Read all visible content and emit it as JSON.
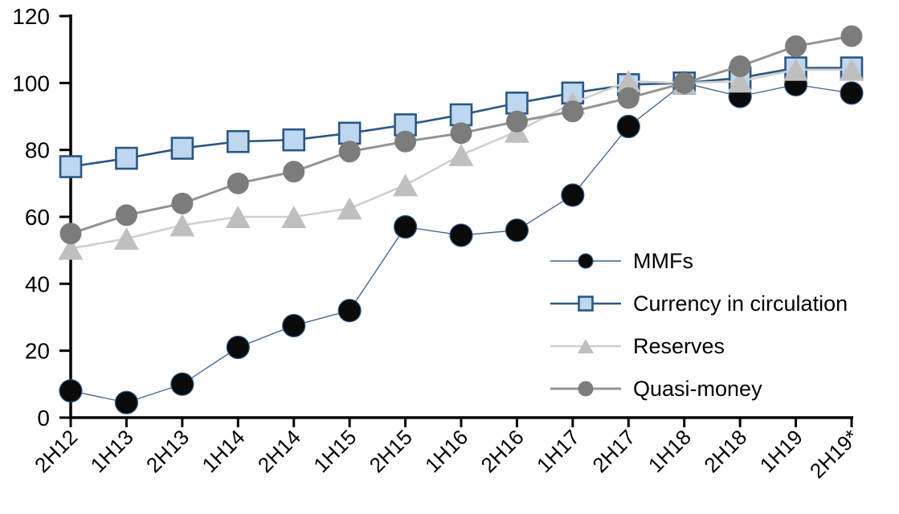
{
  "chart_data": {
    "type": "line",
    "title": "",
    "xlabel": "",
    "ylabel": "",
    "ylim": [
      0,
      120
    ],
    "y_ticks": [
      0,
      20,
      40,
      60,
      80,
      100,
      120
    ],
    "grid": false,
    "axis_color": "#000000",
    "legend_position": "inside-right",
    "categories": [
      "2H12",
      "1H13",
      "2H13",
      "1H14",
      "2H14",
      "1H15",
      "2H15",
      "1H16",
      "2H16",
      "1H17",
      "2H17",
      "1H18",
      "2H18",
      "1H19",
      "2H19*"
    ],
    "series": [
      {
        "name": "MMFs",
        "marker": "circle",
        "marker_color": "#0a0a0a",
        "marker_stroke": "#2e5c8a",
        "line_color": "#3a5f96",
        "line_width": 1.3,
        "marker_size": 28,
        "legend_marker_size": 18,
        "values": [
          8,
          4.5,
          10,
          21,
          27.5,
          32,
          57,
          54.5,
          56,
          66.5,
          87,
          100,
          96,
          99.5,
          97
        ]
      },
      {
        "name": "Currency in circulation",
        "marker": "square",
        "marker_color": "#bdd7ee",
        "marker_stroke": "#2a5784",
        "line_color": "#2a5784",
        "line_width": 2.6,
        "marker_size": 26,
        "legend_marker_size": 17,
        "values": [
          75,
          77.5,
          80.5,
          82.5,
          83,
          85,
          87.5,
          90.5,
          94,
          97,
          99.5,
          100,
          101.5,
          104.5,
          104.5
        ]
      },
      {
        "name": "Reserves",
        "marker": "triangle",
        "marker_color": "#bfbfbf",
        "marker_stroke": "none",
        "line_color": "#cfcfcf",
        "line_width": 2.6,
        "marker_size": 31,
        "legend_marker_size": 20,
        "values": [
          50.5,
          53.5,
          57.5,
          60,
          60,
          62.5,
          69.5,
          78.5,
          85.5,
          94,
          100.5,
          100,
          100.5,
          104,
          104
        ]
      },
      {
        "name": "Quasi-money",
        "marker": "circle",
        "marker_color": "#7c7c7c",
        "marker_stroke": "none",
        "line_color": "#949494",
        "line_width": 3,
        "marker_size": 27,
        "legend_marker_size": 19,
        "values": [
          55,
          60.5,
          64,
          70,
          73.5,
          79.5,
          82.5,
          85,
          88.5,
          91.5,
          95.5,
          100,
          105,
          111,
          114
        ]
      }
    ]
  }
}
